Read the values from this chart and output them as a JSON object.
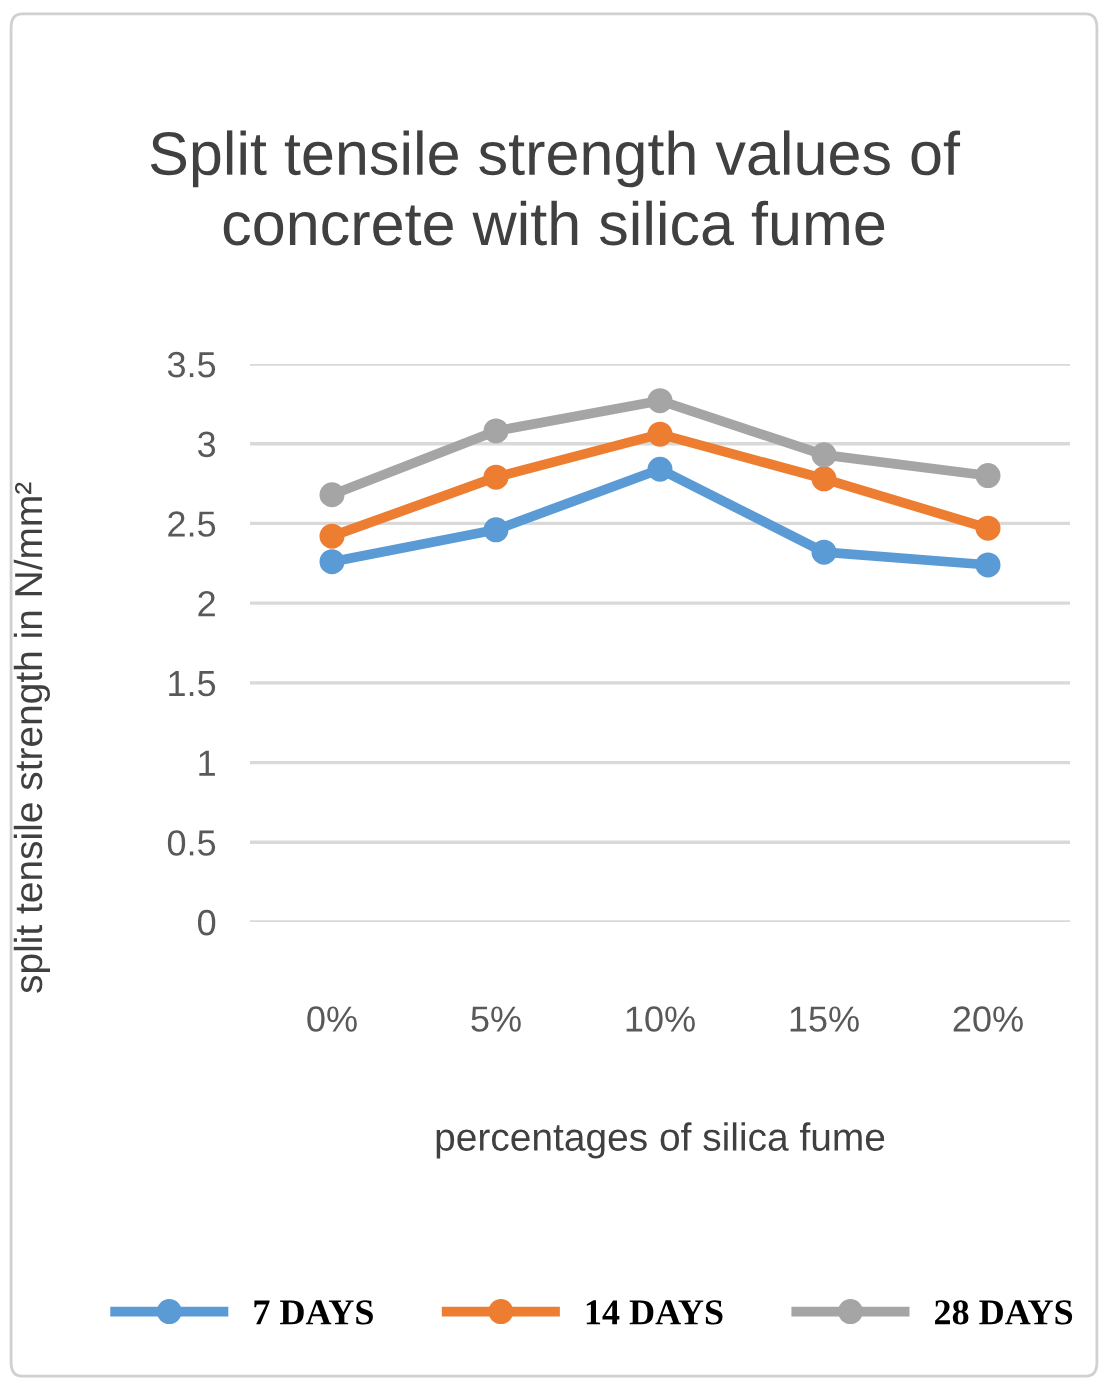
{
  "chart_data": {
    "type": "line",
    "title": "Split tensile strength values of\nconcrete with silica fume",
    "xlabel": "percentages of silica fume",
    "ylabel": "split tensile strength in N/mm²",
    "categories": [
      "0%",
      "5%",
      "10%",
      "15%",
      "20%"
    ],
    "series": [
      {
        "name": "7 DAYS",
        "color": "#5b9bd5",
        "values": [
          2.26,
          2.46,
          2.84,
          2.32,
          2.24
        ]
      },
      {
        "name": "14 DAYS",
        "color": "#ed7d31",
        "values": [
          2.42,
          2.79,
          3.06,
          2.78,
          2.47
        ]
      },
      {
        "name": "28 DAYS",
        "color": "#a5a5a5",
        "values": [
          2.68,
          3.08,
          3.27,
          2.93,
          2.8
        ]
      }
    ],
    "ylim": [
      0,
      3.5
    ],
    "yticks": [
      0,
      0.5,
      1,
      1.5,
      2,
      2.5,
      3,
      3.5
    ],
    "grid": "y",
    "legend": "bottom",
    "marker": "circle",
    "line_style": "solid"
  }
}
